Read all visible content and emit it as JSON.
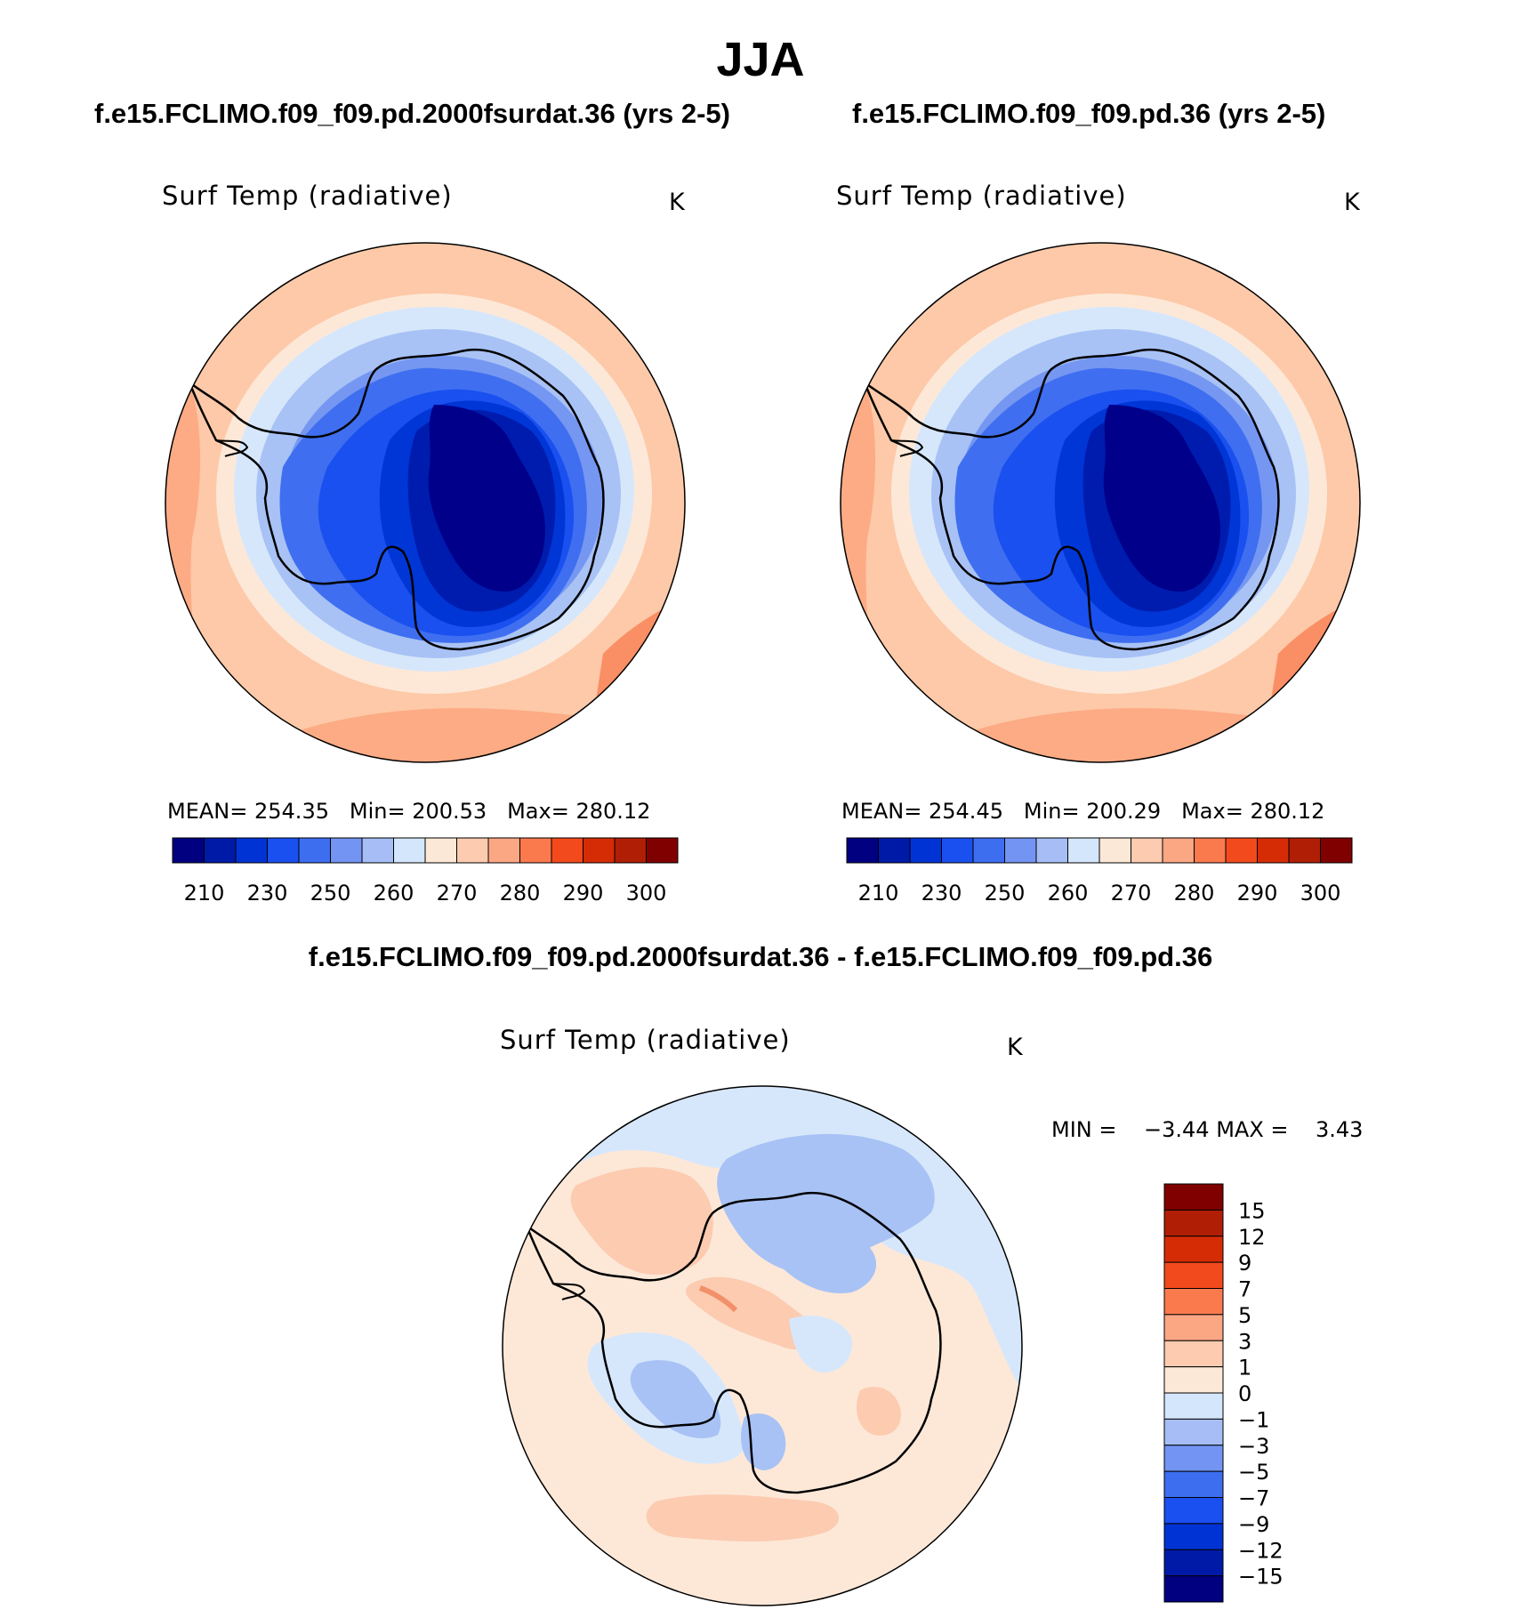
{
  "main_title": "JJA",
  "panels": [
    {
      "case_title": "f.e15.FCLIMO.f09_f09.pd.2000fsurdat.36 (yrs 2-5)",
      "variable": "Surf Temp (radiative)",
      "unit": "K",
      "stats": {
        "mean_label": "MEAN=",
        "mean": "254.35",
        "min_label": "Min=",
        "min": "200.53",
        "max_label": "Max=",
        "max": "280.12"
      }
    },
    {
      "case_title": "f.e15.FCLIMO.f09_f09.pd.36 (yrs 2-5)",
      "variable": "Surf Temp (radiative)",
      "unit": "K",
      "stats": {
        "mean_label": "MEAN=",
        "mean": "254.45",
        "min_label": "Min=",
        "min": "200.29",
        "max_label": "Max=",
        "max": "280.12"
      }
    }
  ],
  "colorbar_main": {
    "tick_labels": [
      "210",
      "230",
      "250",
      "260",
      "270",
      "280",
      "290",
      "300"
    ],
    "colors": [
      "#000080",
      "#001aa8",
      "#0033d4",
      "#1a4ff0",
      "#3d6ef0",
      "#7394f2",
      "#a6bef5",
      "#d4e6fb",
      "#fce8d6",
      "#fccbb0",
      "#fca784",
      "#fa7a4e",
      "#f24a1c",
      "#d62c06",
      "#b01e05",
      "#800000"
    ]
  },
  "difference": {
    "title": "f.e15.FCLIMO.f09_f09.pd.2000fsurdat.36 - f.e15.FCLIMO.f09_f09.pd.36",
    "variable": "Surf Temp (radiative)",
    "unit": "K",
    "min_label": "MIN =",
    "min": "−3.44",
    "max_label": "MAX =",
    "max": "3.43",
    "colorbar": {
      "tick_labels": [
        "15",
        "12",
        "9",
        "7",
        "5",
        "3",
        "1",
        "0",
        "−1",
        "−3",
        "−5",
        "−7",
        "−9",
        "−12",
        "−15"
      ],
      "colors": [
        "#800000",
        "#b01e05",
        "#d62c06",
        "#f24a1c",
        "#fa7a4e",
        "#fca784",
        "#fccbb0",
        "#fce8d6",
        "#d4e6fb",
        "#a6bef5",
        "#7394f2",
        "#3d6ef0",
        "#1a4ff0",
        "#0033d4",
        "#001aa8",
        "#000080"
      ]
    }
  },
  "map_colors": {
    "outer_warm": "#fdc9a8",
    "warm_band": "#fcab84",
    "pale_warm": "#fde8d8",
    "pale_cool": "#d6e7fb",
    "cool1": "#a8c2f5",
    "cool2": "#7597f2",
    "cool3": "#3f6ff0",
    "cool4": "#1a50ef",
    "cool5": "#0036d6",
    "cool6": "#001cae",
    "core": "#00008a",
    "coast": "#000000"
  }
}
